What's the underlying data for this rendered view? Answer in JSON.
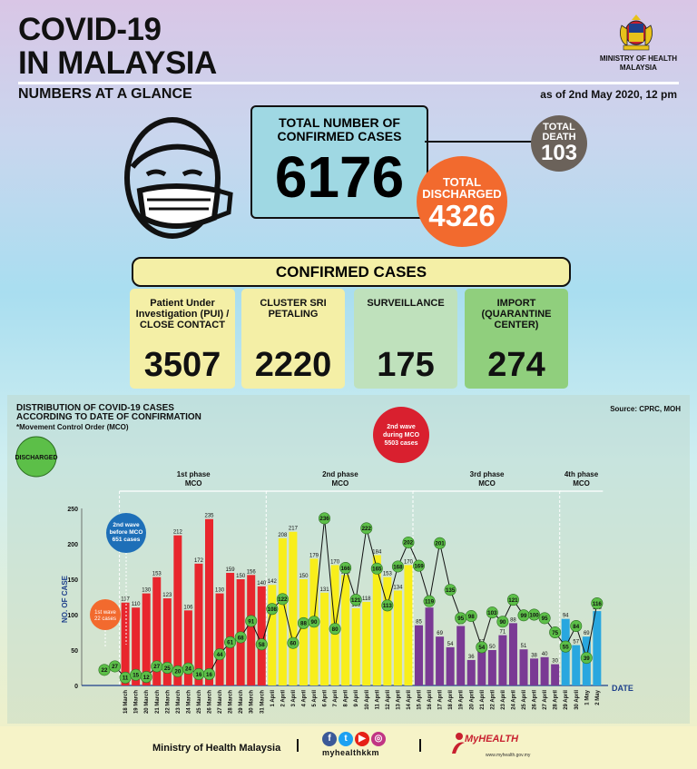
{
  "header": {
    "title_line1": "COVID-19",
    "title_line2": "IN MALAYSIA",
    "ministry_line1": "MINISTRY OF HEALTH",
    "ministry_line2": "MALAYSIA",
    "subtitle": "NUMBERS AT A GLANCE",
    "as_of": "as of 2nd May 2020, 12 pm"
  },
  "totals": {
    "confirmed_label_1": "TOTAL NUMBER OF",
    "confirmed_label_2": "CONFIRMED CASES",
    "confirmed": "6176",
    "death_label_1": "TOTAL",
    "death_label_2": "DEATH",
    "death": "103",
    "discharged_label_1": "TOTAL",
    "discharged_label_2": "DISCHARGED",
    "discharged": "4326"
  },
  "confirmed_cases": {
    "heading": "CONFIRMED CASES",
    "categories": [
      {
        "label": "Patient Under Investigation (PUI) / CLOSE CONTACT",
        "value": "3507"
      },
      {
        "label": "CLUSTER SRI PETALING",
        "value": "2220"
      },
      {
        "label": "SURVEILLANCE",
        "value": "175"
      },
      {
        "label": "IMPORT (QUARANTINE CENTER)",
        "value": "274"
      }
    ]
  },
  "distribution": {
    "title_line1": "DISTRIBUTION OF COVID-19 CASES",
    "title_line2": "ACCORDING TO DATE OF CONFIRMATION",
    "subtitle": "*Movement Control Order (MCO)",
    "source": "Source: CPRC, MOH"
  },
  "chart_data": {
    "type": "bar",
    "xlabel": "DATE",
    "ylabel": "NO. OF CASE",
    "ylim": [
      0,
      250
    ],
    "yticks": [
      0,
      50,
      100,
      150,
      200,
      250
    ],
    "legend": "DISCHARGED",
    "categories": [
      "",
      "",
      "18 March",
      "19 March",
      "20 March",
      "21 March",
      "22 March",
      "23 March",
      "24 March",
      "25 March",
      "26 March",
      "27 March",
      "28 March",
      "29 March",
      "30 March",
      "31 March",
      "1 April",
      "2 April",
      "3 April",
      "4 April",
      "5 April",
      "6 April",
      "7 April",
      "8 April",
      "9 April",
      "10 April",
      "11 April",
      "12 April",
      "13 April",
      "14 April",
      "15 April",
      "16 April",
      "17 April",
      "18 April",
      "19 April",
      "20 April",
      "21 April",
      "22 April",
      "23 April",
      "24 April",
      "25 April",
      "26 April",
      "27 April",
      "28 April",
      "29 April",
      "30 April",
      "1 May",
      "2 May"
    ],
    "series": [
      {
        "name": "Confirmed",
        "values": [
          null,
          null,
          117,
          110,
          130,
          153,
          123,
          212,
          106,
          172,
          235,
          130,
          159,
          150,
          156,
          140,
          142,
          208,
          217,
          150,
          179,
          131,
          170,
          156,
          109,
          118,
          184,
          153,
          134,
          170,
          85,
          110,
          69,
          54,
          84,
          36,
          57,
          50,
          71,
          88,
          51,
          38,
          40,
          30,
          94,
          57,
          69,
          105
        ]
      },
      {
        "name": "DISCHARGED",
        "values": [
          22,
          27,
          11,
          15,
          12,
          27,
          25,
          20,
          24,
          16,
          16,
          44,
          61,
          68,
          91,
          58,
          108,
          122,
          60,
          88,
          90,
          236,
          80,
          166,
          121,
          222,
          165,
          113,
          168,
          202,
          169,
          119,
          201,
          135,
          95,
          98,
          54,
          103,
          90,
          121,
          99,
          100,
          95,
          75,
          55,
          84,
          39,
          116
        ]
      }
    ],
    "discharged_labels_hidden": [],
    "annotations": [
      {
        "text": "1st wave 22 cases",
        "color": "#f26a2e"
      },
      {
        "text": "2nd wave before MCO 651 cases",
        "color": "#1e6fb8"
      },
      {
        "text": "2nd wave during MCO 5503 cases",
        "color": "#d9202f"
      }
    ],
    "phases": [
      {
        "line1": "1st phase",
        "line2": "MCO",
        "from": 2,
        "to": 15,
        "color": "#e8262d"
      },
      {
        "line1": "2nd phase",
        "line2": "MCO",
        "from": 16,
        "to": 29,
        "color": "#f8ee1b"
      },
      {
        "line1": "3rd phase",
        "line2": "MCO",
        "from": 30,
        "to": 43,
        "color": "#7a3a94"
      },
      {
        "line1": "4th phase",
        "line2": "MCO",
        "from": 44,
        "to": 47,
        "color": "#29a7df"
      }
    ]
  },
  "footer": {
    "ministry": "Ministry of Health Malaysia",
    "handle": "myhealthkkm",
    "brand": "MyHEALTH",
    "url": "www.myhealth.gov.my"
  }
}
